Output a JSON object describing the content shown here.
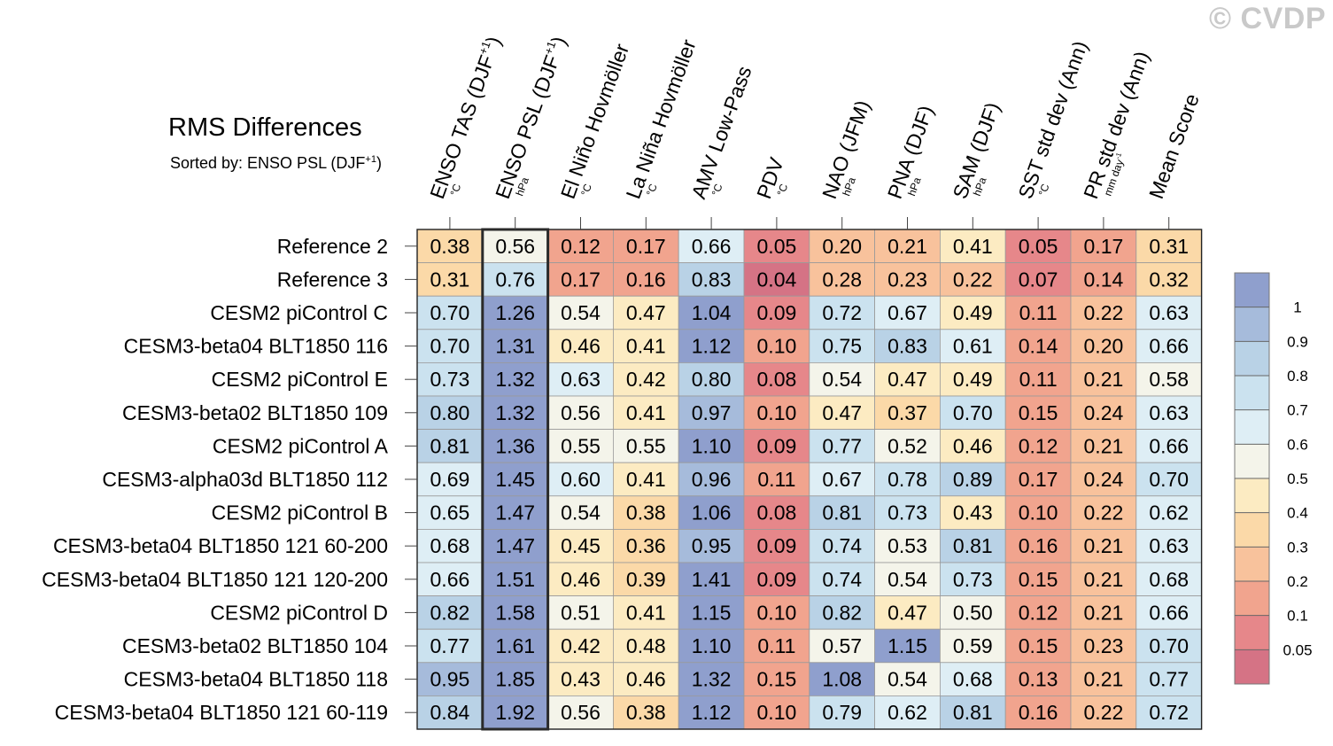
{
  "watermark": "© CVDP",
  "chart_data": {
    "type": "heatmap",
    "title": "RMS Differences",
    "subtitle_prefix": "Sorted by: ENSO PSL (DJF",
    "subtitle_sup": "+1",
    "subtitle_suffix": ")",
    "columns": [
      {
        "label": "ENSO TAS (DJF",
        "sup": "+1",
        "close": ")",
        "unit": "°C"
      },
      {
        "label": "ENSO PSL (DJF",
        "sup": "+1",
        "close": ")",
        "unit": "hPa"
      },
      {
        "label": "El Niño Hovmöller",
        "unit": "°C"
      },
      {
        "label": "La Niña Hovmöller",
        "unit": "°C"
      },
      {
        "label": "AMV Low-Pass",
        "unit": "°C"
      },
      {
        "label": "PDV",
        "unit": "°C"
      },
      {
        "label": "NAO (JFM)",
        "unit": "hPa"
      },
      {
        "label": "PNA (DJF)",
        "unit": "hPa"
      },
      {
        "label": "SAM (DJF)",
        "unit": "hPa"
      },
      {
        "label": "SST std dev (Ann)",
        "unit": "°C"
      },
      {
        "label": "PR std dev (Ann)",
        "unit": "mm day",
        "unit_sup": "-1"
      },
      {
        "label": "Mean Score",
        "unit": ""
      }
    ],
    "rows": [
      "Reference 2",
      "Reference 3",
      "CESM2 piControl C",
      "CESM3-beta04 BLT1850 116",
      "CESM2 piControl E",
      "CESM3-beta02 BLT1850 109",
      "CESM2 piControl A",
      "CESM3-alpha03d BLT1850 112",
      "CESM2 piControl B",
      "CESM3-beta04 BLT1850 121 60-200",
      "CESM3-beta04 BLT1850 121 120-200",
      "CESM2 piControl D",
      "CESM3-beta02 BLT1850 104",
      "CESM3-beta04 BLT1850 118",
      "CESM3-beta04 BLT1850 121 60-119"
    ],
    "values": [
      [
        "0.38",
        "0.56",
        "0.12",
        "0.17",
        "0.66",
        "0.05",
        "0.20",
        "0.21",
        "0.41",
        "0.05",
        "0.17",
        "0.31"
      ],
      [
        "0.31",
        "0.76",
        "0.17",
        "0.16",
        "0.83",
        "0.04",
        "0.28",
        "0.23",
        "0.22",
        "0.07",
        "0.14",
        "0.32"
      ],
      [
        "0.70",
        "1.26",
        "0.54",
        "0.47",
        "1.04",
        "0.09",
        "0.72",
        "0.67",
        "0.49",
        "0.11",
        "0.22",
        "0.63"
      ],
      [
        "0.70",
        "1.31",
        "0.46",
        "0.41",
        "1.12",
        "0.10",
        "0.75",
        "0.83",
        "0.61",
        "0.14",
        "0.20",
        "0.66"
      ],
      [
        "0.73",
        "1.32",
        "0.63",
        "0.42",
        "0.80",
        "0.08",
        "0.54",
        "0.47",
        "0.49",
        "0.11",
        "0.21",
        "0.58"
      ],
      [
        "0.80",
        "1.32",
        "0.56",
        "0.41",
        "0.97",
        "0.10",
        "0.47",
        "0.37",
        "0.70",
        "0.15",
        "0.24",
        "0.63"
      ],
      [
        "0.81",
        "1.36",
        "0.55",
        "0.55",
        "1.10",
        "0.09",
        "0.77",
        "0.52",
        "0.46",
        "0.12",
        "0.21",
        "0.66"
      ],
      [
        "0.69",
        "1.45",
        "0.60",
        "0.41",
        "0.96",
        "0.11",
        "0.67",
        "0.78",
        "0.89",
        "0.17",
        "0.24",
        "0.70"
      ],
      [
        "0.65",
        "1.47",
        "0.54",
        "0.38",
        "1.06",
        "0.08",
        "0.81",
        "0.73",
        "0.43",
        "0.10",
        "0.22",
        "0.62"
      ],
      [
        "0.68",
        "1.47",
        "0.45",
        "0.36",
        "0.95",
        "0.09",
        "0.74",
        "0.53",
        "0.81",
        "0.16",
        "0.21",
        "0.63"
      ],
      [
        "0.66",
        "1.51",
        "0.46",
        "0.39",
        "1.41",
        "0.09",
        "0.74",
        "0.54",
        "0.73",
        "0.15",
        "0.21",
        "0.68"
      ],
      [
        "0.82",
        "1.58",
        "0.51",
        "0.41",
        "1.15",
        "0.10",
        "0.82",
        "0.47",
        "0.50",
        "0.12",
        "0.21",
        "0.66"
      ],
      [
        "0.77",
        "1.61",
        "0.42",
        "0.48",
        "1.10",
        "0.11",
        "0.57",
        "1.15",
        "0.59",
        "0.15",
        "0.23",
        "0.70"
      ],
      [
        "0.95",
        "1.85",
        "0.43",
        "0.46",
        "1.32",
        "0.15",
        "1.08",
        "0.54",
        "0.68",
        "0.13",
        "0.21",
        "0.77"
      ],
      [
        "0.84",
        "1.92",
        "0.56",
        "0.38",
        "1.12",
        "0.10",
        "0.79",
        "0.62",
        "0.81",
        "0.16",
        "0.22",
        "0.72"
      ]
    ],
    "sorted_column_index": 1,
    "colorbar": {
      "levels": [
        "1",
        "0.9",
        "0.8",
        "0.7",
        "0.6",
        "0.5",
        "0.4",
        "0.3",
        "0.2",
        "0.1",
        "0.05"
      ],
      "colors": [
        "#8f9fcd",
        "#a6bbdb",
        "#b9d2e6",
        "#cbe2ef",
        "#deeef5",
        "#f4f4ea",
        "#fcebc2",
        "#fbd9a8",
        "#f8c29c",
        "#f1a48e",
        "#e6878a",
        "#d57385"
      ]
    }
  }
}
